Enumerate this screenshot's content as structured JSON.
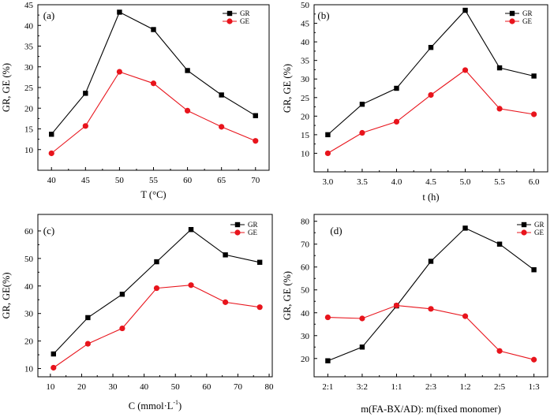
{
  "figure": {
    "colors": {
      "GR": "#000000",
      "GE": "#e8141c"
    }
  },
  "chart_data": [
    {
      "type": "line",
      "panel_label": "(a)",
      "xlabel": "T (°C)",
      "ylabel": "GR, GE (%)",
      "x": [
        40,
        45,
        50,
        55,
        60,
        65,
        70
      ],
      "xticks": [
        40,
        45,
        50,
        55,
        60,
        65,
        70
      ],
      "xtick_labels": [
        "40",
        "45",
        "50",
        "55",
        "60",
        "65",
        "70"
      ],
      "xlim": [
        38,
        72
      ],
      "ylim": [
        5,
        45
      ],
      "yticks": [
        10,
        15,
        20,
        25,
        30,
        35,
        40,
        45
      ],
      "legend": "top-right",
      "series": [
        {
          "name": "GR",
          "marker": "square",
          "values": [
            13.7,
            23.6,
            43.2,
            39.0,
            29.1,
            23.2,
            18.2
          ]
        },
        {
          "name": "GE",
          "marker": "circle",
          "values": [
            9.1,
            15.7,
            28.8,
            26.0,
            19.4,
            15.5,
            12.1
          ]
        }
      ]
    },
    {
      "type": "line",
      "panel_label": "(b)",
      "xlabel": "t (h)",
      "ylabel": "GR, GE (%)",
      "x": [
        3.0,
        3.5,
        4.0,
        4.5,
        5.0,
        5.5,
        6.0
      ],
      "xticks": [
        3.0,
        3.5,
        4.0,
        4.5,
        5.0,
        5.5,
        6.0
      ],
      "xtick_labels": [
        "3.0",
        "3.5",
        "4.0",
        "4.5",
        "5.0",
        "5.5",
        "6.0"
      ],
      "xlim": [
        2.8,
        6.2
      ],
      "ylim": [
        5,
        50
      ],
      "yticks": [
        10,
        15,
        20,
        25,
        30,
        35,
        40,
        45,
        50
      ],
      "legend": "top-right",
      "series": [
        {
          "name": "GR",
          "marker": "square",
          "values": [
            15.0,
            23.2,
            27.5,
            38.5,
            48.5,
            33.0,
            30.8
          ]
        },
        {
          "name": "GE",
          "marker": "circle",
          "values": [
            10.0,
            15.5,
            18.5,
            25.7,
            32.4,
            22.0,
            20.5
          ]
        }
      ]
    },
    {
      "type": "line",
      "panel_label": "(c)",
      "xlabel": "C (mmol·L",
      "xlabel_sup": "-1",
      "xlabel_end": ")",
      "ylabel": "GR, GE(%)",
      "x": [
        11,
        22,
        33,
        44,
        55,
        66,
        77
      ],
      "xticks": [
        10,
        20,
        30,
        40,
        50,
        60,
        70,
        80
      ],
      "xtick_labels": [
        "10",
        "20",
        "30",
        "40",
        "50",
        "60",
        "70",
        "80"
      ],
      "xlim": [
        6,
        81
      ],
      "ylim": [
        7,
        66
      ],
      "yticks": [
        10,
        20,
        30,
        40,
        50,
        60
      ],
      "legend": "top-right",
      "series": [
        {
          "name": "GR",
          "marker": "square",
          "values": [
            15.3,
            28.5,
            37.0,
            48.8,
            60.5,
            51.3,
            48.6
          ]
        },
        {
          "name": "GE",
          "marker": "circle",
          "values": [
            10.3,
            19.0,
            24.6,
            39.2,
            40.3,
            34.1,
            32.3
          ]
        }
      ]
    },
    {
      "type": "line",
      "panel_label": "(d)",
      "xlabel": "m(FA-BX/AD): m(fixed monomer)",
      "ylabel": "GR, GE (%)",
      "x": [
        1,
        2,
        3,
        4,
        5,
        6,
        7
      ],
      "xticks": [
        1,
        2,
        3,
        4,
        5,
        6,
        7
      ],
      "xtick_labels": [
        "2:1",
        "3:2",
        "1:1",
        "2:3",
        "1:2",
        "2:5",
        "1:3"
      ],
      "xlim": [
        0.6,
        7.4
      ],
      "ylim": [
        12,
        83
      ],
      "yticks": [
        20,
        30,
        40,
        50,
        60,
        70,
        80
      ],
      "legend": "top-right",
      "series": [
        {
          "name": "GR",
          "marker": "square",
          "values": [
            19.0,
            25.0,
            43.0,
            62.5,
            77.0,
            70.0,
            58.8
          ]
        },
        {
          "name": "GE",
          "marker": "circle",
          "values": [
            38.0,
            37.5,
            43.2,
            41.7,
            38.5,
            23.3,
            19.5
          ]
        }
      ]
    }
  ]
}
